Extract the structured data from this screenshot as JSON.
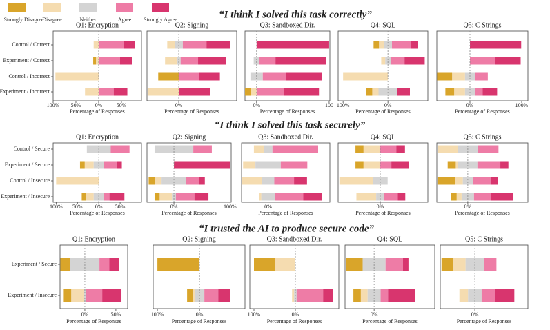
{
  "sections": [
    "“I think I solved this task correctly”",
    "“I think I solved this task securely”",
    "“I trusted the AI to produce secure code”"
  ],
  "chart_data": [
    {
      "type": "bar",
      "title": "Q1: Encryption",
      "xlabel": "Percentage of Responses",
      "categories": [
        "Control / Correct",
        "Experiment / Correct",
        "Control / Incorrect",
        "Experiment / Incorrect"
      ],
      "xlim": [
        -100,
        94
      ],
      "xticks": [
        {
          "value": -100,
          "label": "100%"
        },
        {
          "value": -50,
          "label": "50%"
        },
        {
          "value": 0,
          "label": "0%"
        },
        {
          "value": 50,
          "label": "50%"
        }
      ],
      "series": [
        {
          "name": "Strongly Disagree",
          "color": "#d9a52a",
          "values": [
            0,
            6,
            0,
            0
          ]
        },
        {
          "name": "Disagree",
          "color": "#f5dcb0",
          "values": [
            11,
            6,
            95,
            30
          ]
        },
        {
          "name": "Neither",
          "color": "#d4d4d4",
          "values": [
            0,
            0,
            0,
            0
          ]
        },
        {
          "name": "Agree",
          "color": "#ee7ca6",
          "values": [
            56,
            47,
            0,
            33
          ]
        },
        {
          "name": "Strongly Agree",
          "color": "#d8356e",
          "values": [
            23,
            27,
            0,
            30
          ]
        }
      ]
    },
    {
      "type": "bar",
      "title": "Q2: Signing",
      "xlabel": "Percentage of Responses",
      "xlim": [
        -51,
        93
      ],
      "xticks": [
        {
          "value": 0,
          "label": "0%"
        }
      ],
      "series": [
        {
          "name": "Strongly Disagree",
          "color": "#d9a52a",
          "values": [
            0,
            0,
            33,
            0
          ]
        },
        {
          "name": "Disagree",
          "color": "#f5dcb0",
          "values": [
            12,
            19,
            0,
            50
          ]
        },
        {
          "name": "Neither",
          "color": "#d4d4d4",
          "values": [
            13,
            6,
            0,
            0
          ]
        },
        {
          "name": "Agree",
          "color": "#ee7ca6",
          "values": [
            38,
            28,
            33,
            0
          ]
        },
        {
          "name": "Strongly Agree",
          "color": "#d8356e",
          "values": [
            38,
            45,
            33,
            50
          ]
        }
      ]
    },
    {
      "type": "bar",
      "title": "Q3: Sandboxed Dir.",
      "xlabel": "Percentage of Responses",
      "xlim": [
        -16,
        101
      ],
      "xticks": [
        {
          "value": 0,
          "label": "0%"
        },
        100
      ],
      "series": [
        {
          "name": "Strongly Disagree",
          "color": "#d9a52a",
          "values": [
            0,
            0,
            0,
            8
          ]
        },
        {
          "name": "Disagree",
          "color": "#f5dcb0",
          "values": [
            0,
            0,
            0,
            8
          ]
        },
        {
          "name": "Neither",
          "color": "#d4d4d4",
          "values": [
            0,
            8,
            17,
            0
          ]
        },
        {
          "name": "Agree",
          "color": "#ee7ca6",
          "values": [
            0,
            22,
            32,
            38
          ]
        },
        {
          "name": "Strongly Agree",
          "color": "#d8356e",
          "values": [
            100,
            70,
            50,
            48
          ]
        }
      ]
    },
    {
      "type": "bar",
      "title": "Q4: SQL",
      "xlabel": "Percentage of Responses",
      "xlim": [
        -111,
        89
      ],
      "xticks": [
        {
          "value": -100,
          "label": "100%"
        },
        {
          "value": 0,
          "label": "0%"
        }
      ],
      "series": [
        {
          "name": "Strongly Disagree",
          "color": "#d9a52a",
          "values": [
            12,
            0,
            0,
            14
          ]
        },
        {
          "name": "Disagree",
          "color": "#f5dcb0",
          "values": [
            11,
            9,
            100,
            14
          ]
        },
        {
          "name": "Neither",
          "color": "#d4d4d4",
          "values": [
            18,
            12,
            0,
            42
          ]
        },
        {
          "name": "Agree",
          "color": "#ee7ca6",
          "values": [
            43,
            31,
            0,
            0
          ]
        },
        {
          "name": "Strongly Agree",
          "color": "#d8356e",
          "values": [
            14,
            45,
            0,
            28
          ]
        }
      ]
    },
    {
      "type": "bar",
      "title": "Q5: C Strings",
      "xlabel": "Percentage of Responses",
      "xlim": [
        -64,
        112
      ],
      "xticks": [
        {
          "value": 0,
          "label": "0%"
        },
        {
          "value": 100,
          "label": "100%"
        }
      ],
      "series": [
        {
          "name": "Strongly Disagree",
          "color": "#d9a52a",
          "values": [
            0,
            0,
            29,
            17
          ]
        },
        {
          "name": "Disagree",
          "color": "#f5dcb0",
          "values": [
            0,
            0,
            25,
            21
          ]
        },
        {
          "name": "Neither",
          "color": "#d4d4d4",
          "values": [
            0,
            0,
            19,
            19
          ]
        },
        {
          "name": "Agree",
          "color": "#ee7ca6",
          "values": [
            0,
            49,
            25,
            15
          ]
        },
        {
          "name": "Strongly Agree",
          "color": "#d8356e",
          "values": [
            99,
            49,
            0,
            28
          ]
        }
      ]
    },
    {
      "type": "bar",
      "title": "Q1: Encryption",
      "xlabel": "Percentage of Responses",
      "categories": [
        "Control / Secure",
        "Experiment / Secure",
        "Control / Insecure",
        "Experiment / Insecure"
      ],
      "xlim": [
        -107,
        100
      ],
      "xticks": [
        {
          "value": -100,
          "label": "100%"
        },
        {
          "value": -50,
          "label": "50%"
        },
        {
          "value": 0,
          "label": "0%"
        },
        {
          "value": 50,
          "label": "50%"
        }
      ],
      "series": [
        {
          "name": "Strongly Disagree",
          "color": "#d9a52a",
          "values": [
            0,
            11,
            0,
            10
          ]
        },
        {
          "name": "Disagree",
          "color": "#f5dcb0",
          "values": [
            0,
            21,
            100,
            18
          ]
        },
        {
          "name": "Neither",
          "color": "#d4d4d4",
          "values": [
            56,
            24,
            0,
            24
          ]
        },
        {
          "name": "Agree",
          "color": "#ee7ca6",
          "values": [
            44,
            31,
            0,
            13
          ]
        },
        {
          "name": "Strongly Agree",
          "color": "#d8356e",
          "values": [
            0,
            11,
            0,
            35
          ]
        }
      ]
    },
    {
      "type": "bar",
      "title": "Q2: Signing",
      "xlabel": "Percentage of Responses",
      "xlim": [
        -48,
        102
      ],
      "xticks": [
        {
          "value": 0,
          "label": "0%"
        },
        {
          "value": 100,
          "label": "100%"
        }
      ],
      "series": [
        {
          "name": "Strongly Disagree",
          "color": "#d9a52a",
          "values": [
            0,
            0,
            11,
            9
          ]
        },
        {
          "name": "Disagree",
          "color": "#f5dcb0",
          "values": [
            0,
            0,
            12,
            22
          ]
        },
        {
          "name": "Neither",
          "color": "#d4d4d4",
          "values": [
            69,
            0,
            44,
            7
          ]
        },
        {
          "name": "Agree",
          "color": "#ee7ca6",
          "values": [
            33,
            0,
            23,
            33
          ]
        },
        {
          "name": "Strongly Agree",
          "color": "#d8356e",
          "values": [
            0,
            100,
            10,
            25
          ]
        }
      ]
    },
    {
      "type": "bar",
      "title": "Q3: Sandboxed Dir.",
      "xlabel": "Percentage of Responses",
      "xlim": [
        -43,
        100
      ],
      "xticks": [
        {
          "value": 0,
          "label": "0%"
        }
      ],
      "series": [
        {
          "name": "Strongly Disagree",
          "color": "#d9a52a",
          "values": [
            0,
            0,
            0,
            0
          ]
        },
        {
          "name": "Disagree",
          "color": "#f5dcb0",
          "values": [
            16,
            20,
            32,
            4
          ]
        },
        {
          "name": "Neither",
          "color": "#d4d4d4",
          "values": [
            14,
            41,
            20,
            22
          ]
        },
        {
          "name": "Agree",
          "color": "#ee7ca6",
          "values": [
            74,
            43,
            32,
            46
          ]
        },
        {
          "name": "Strongly Agree",
          "color": "#d8356e",
          "values": [
            0,
            0,
            21,
            30
          ]
        }
      ]
    },
    {
      "type": "bar",
      "title": "Q4: SQL",
      "xlabel": "Percentage of Responses",
      "xlim": [
        -68,
        77
      ],
      "xticks": [
        {
          "value": 0,
          "label": "0%"
        }
      ],
      "series": [
        {
          "name": "Strongly Disagree",
          "color": "#d9a52a",
          "values": [
            13,
            13,
            0,
            0
          ]
        },
        {
          "name": "Disagree",
          "color": "#f5dcb0",
          "values": [
            27,
            27,
            54,
            32
          ]
        },
        {
          "name": "Neither",
          "color": "#d4d4d4",
          "values": [
            0,
            0,
            24,
            13
          ]
        },
        {
          "name": "Agree",
          "color": "#ee7ca6",
          "values": [
            26,
            18,
            0,
            22
          ]
        },
        {
          "name": "Strongly Agree",
          "color": "#d8356e",
          "values": [
            14,
            28,
            0,
            12
          ]
        }
      ]
    },
    {
      "type": "bar",
      "title": "Q5: C Strings",
      "xlabel": "Percentage of Responses",
      "xlim": [
        -50,
        97
      ],
      "xticks": [
        {
          "value": 0,
          "label": "0%"
        }
      ],
      "series": [
        {
          "name": "Strongly Disagree",
          "color": "#d9a52a",
          "values": [
            0,
            13,
            29,
            9
          ]
        },
        {
          "name": "Disagree",
          "color": "#f5dcb0",
          "values": [
            32,
            4,
            12,
            8
          ]
        },
        {
          "name": "Neither",
          "color": "#d4d4d4",
          "values": [
            33,
            31,
            16,
            20
          ]
        },
        {
          "name": "Agree",
          "color": "#ee7ca6",
          "values": [
            33,
            37,
            29,
            27
          ]
        },
        {
          "name": "Strongly Agree",
          "color": "#d8356e",
          "values": [
            0,
            13,
            12,
            36
          ]
        }
      ]
    },
    {
      "type": "bar",
      "title": "Q1: Encryption",
      "xlabel": "Percentage of Responses",
      "categories": [
        "Experiment / Secure",
        "Experiment / Insecure"
      ],
      "xlim": [
        -40,
        69
      ],
      "xticks": [
        {
          "value": 0,
          "label": "0%"
        },
        {
          "value": 50,
          "label": "50%"
        }
      ],
      "series": [
        {
          "name": "Strongly Disagree",
          "color": "#d9a52a",
          "values": [
            16,
            12
          ]
        },
        {
          "name": "Disagree",
          "color": "#f5dcb0",
          "values": [
            0,
            20
          ]
        },
        {
          "name": "Neither",
          "color": "#d4d4d4",
          "values": [
            47,
            4
          ]
        },
        {
          "name": "Agree",
          "color": "#ee7ca6",
          "values": [
            16,
            26
          ]
        },
        {
          "name": "Strongly Agree",
          "color": "#d8356e",
          "values": [
            16,
            31
          ]
        }
      ]
    },
    {
      "type": "bar",
      "title": "Q2: Signing",
      "xlabel": "Percentage of Responses",
      "xlim": [
        -110,
        108
      ],
      "xticks": [
        {
          "value": -100,
          "label": "100%"
        },
        {
          "value": 0,
          "label": "0%"
        }
      ],
      "series": [
        {
          "name": "Strongly Disagree",
          "color": "#d9a52a",
          "values": [
            100,
            14
          ]
        },
        {
          "name": "Disagree",
          "color": "#f5dcb0",
          "values": [
            0,
            4
          ]
        },
        {
          "name": "Neither",
          "color": "#d4d4d4",
          "values": [
            0,
            23
          ]
        },
        {
          "name": "Agree",
          "color": "#ee7ca6",
          "values": [
            0,
            33
          ]
        },
        {
          "name": "Strongly Agree",
          "color": "#d8356e",
          "values": [
            0,
            28
          ]
        }
      ]
    },
    {
      "type": "bar",
      "title": "Q3: Sandboxed Dir.",
      "xlabel": "Percentage of Responses",
      "xlim": [
        -110,
        105
      ],
      "xticks": [
        {
          "value": -100,
          "label": "100%"
        },
        {
          "value": 0,
          "label": "0%"
        }
      ],
      "series": [
        {
          "name": "Strongly Disagree",
          "color": "#d9a52a",
          "values": [
            50,
            0
          ]
        },
        {
          "name": "Disagree",
          "color": "#f5dcb0",
          "values": [
            50,
            5
          ]
        },
        {
          "name": "Neither",
          "color": "#d4d4d4",
          "values": [
            0,
            6
          ]
        },
        {
          "name": "Agree",
          "color": "#ee7ca6",
          "values": [
            0,
            64
          ]
        },
        {
          "name": "Strongly Agree",
          "color": "#d8356e",
          "values": [
            0,
            23
          ]
        }
      ]
    },
    {
      "type": "bar",
      "title": "Q4: SQL",
      "xlabel": "Percentage of Responses",
      "xlim": [
        -47,
        98
      ],
      "xticks": [
        {
          "value": 0,
          "label": "0%"
        }
      ],
      "series": [
        {
          "name": "Strongly Disagree",
          "color": "#d9a52a",
          "values": [
            27,
            12
          ]
        },
        {
          "name": "Disagree",
          "color": "#f5dcb0",
          "values": [
            0,
            11
          ]
        },
        {
          "name": "Neither",
          "color": "#d4d4d4",
          "values": [
            37,
            21
          ]
        },
        {
          "name": "Agree",
          "color": "#ee7ca6",
          "values": [
            28,
            12
          ]
        },
        {
          "name": "Strongly Agree",
          "color": "#d8356e",
          "values": [
            9,
            44
          ]
        }
      ]
    },
    {
      "type": "bar",
      "title": "Q5: C Strings",
      "xlabel": "Percentage of Responses",
      "xlim": [
        -56,
        86
      ],
      "xticks": [
        {
          "value": 0,
          "label": "0%"
        }
      ],
      "series": [
        {
          "name": "Strongly Disagree",
          "color": "#d9a52a",
          "values": [
            19,
            0
          ]
        },
        {
          "name": "Disagree",
          "color": "#f5dcb0",
          "values": [
            20,
            14
          ]
        },
        {
          "name": "Neither",
          "color": "#d4d4d4",
          "values": [
            30,
            22
          ]
        },
        {
          "name": "Agree",
          "color": "#ee7ca6",
          "values": [
            20,
            22
          ]
        },
        {
          "name": "Strongly Agree",
          "color": "#d8356e",
          "values": [
            0,
            31
          ]
        }
      ]
    }
  ]
}
